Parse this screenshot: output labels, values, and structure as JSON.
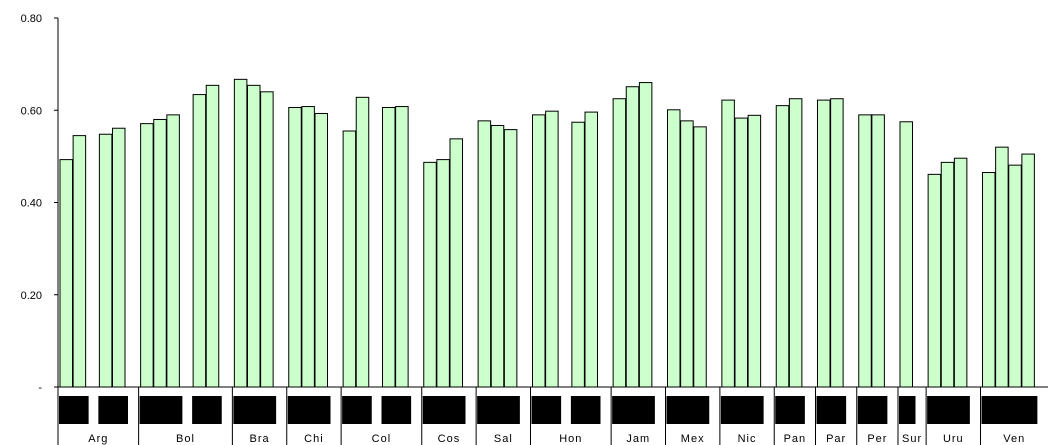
{
  "chart_data": {
    "type": "bar",
    "ylim": [
      0,
      0.8
    ],
    "yticks": [
      {
        "value": 0.0,
        "label": "-"
      },
      {
        "value": 0.2,
        "label": "0.20"
      },
      {
        "value": 0.4,
        "label": "0.40"
      },
      {
        "value": 0.6,
        "label": "0.60"
      },
      {
        "value": 0.8,
        "label": "0.80"
      }
    ],
    "grid": false,
    "bar_color": "#ccffcc",
    "categories": [
      {
        "label": "Arg",
        "values": [
          0.493,
          0.545,
          null,
          0.548,
          0.561
        ]
      },
      {
        "label": "Bol",
        "values": [
          0.571,
          0.58,
          0.59,
          null,
          0.634,
          0.654
        ]
      },
      {
        "label": "Bra",
        "values": [
          0.667,
          0.654,
          0.64
        ]
      },
      {
        "label": "Chi",
        "values": [
          0.606,
          0.608,
          0.593
        ]
      },
      {
        "label": "Col",
        "values": [
          0.555,
          0.628,
          null,
          0.606,
          0.608
        ]
      },
      {
        "label": "Cos",
        "values": [
          0.487,
          0.493,
          0.538
        ]
      },
      {
        "label": "Sal",
        "values": [
          0.577,
          0.567,
          0.558
        ]
      },
      {
        "label": "Hon",
        "values": [
          0.59,
          0.598,
          null,
          0.574,
          0.596
        ]
      },
      {
        "label": "Jam",
        "values": [
          0.625,
          0.651,
          0.66
        ]
      },
      {
        "label": "Mex",
        "values": [
          0.601,
          0.577,
          0.564
        ]
      },
      {
        "label": "Nic",
        "values": [
          0.622,
          0.583,
          0.589
        ]
      },
      {
        "label": "Pan",
        "values": [
          0.61,
          0.625
        ]
      },
      {
        "label": "Par",
        "values": [
          0.622,
          0.625
        ]
      },
      {
        "label": "Per",
        "values": [
          0.59,
          0.59
        ]
      },
      {
        "label": "Sur",
        "values": [
          0.575
        ]
      },
      {
        "label": "Uru",
        "values": [
          0.461,
          0.487,
          0.496
        ]
      },
      {
        "label": "Ven",
        "values": [
          0.465,
          0.52,
          0.481,
          0.505
        ]
      }
    ]
  }
}
